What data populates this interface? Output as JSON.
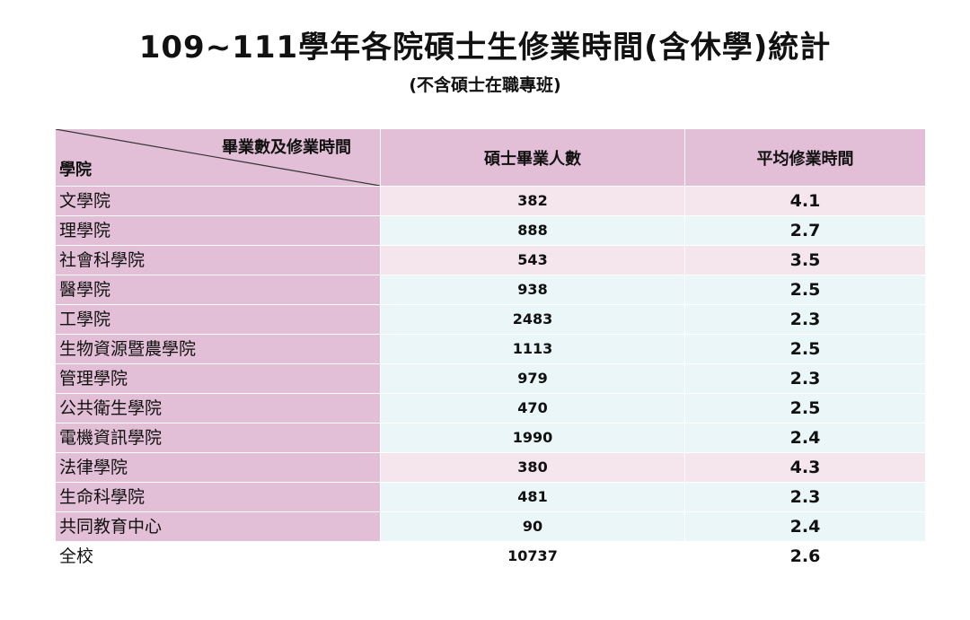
{
  "title": "109~111學年各院碩士生修業時間(含休學)統計",
  "subtitle": "(不含碩士在職專班)",
  "table": {
    "corner_top": "畢業數及修業時間",
    "corner_bottom": "學院",
    "col_graduates": "碩士畢業人數",
    "col_avg_time": "平均修業時間",
    "rows": [
      {
        "college": "文學院",
        "graduates": "382",
        "avg": "4.1"
      },
      {
        "college": "理學院",
        "graduates": "888",
        "avg": "2.7"
      },
      {
        "college": "社會科學院",
        "graduates": "543",
        "avg": "3.5"
      },
      {
        "college": "醫學院",
        "graduates": "938",
        "avg": "2.5"
      },
      {
        "college": "工學院",
        "graduates": "2483",
        "avg": "2.3"
      },
      {
        "college": "生物資源暨農學院",
        "graduates": "1113",
        "avg": "2.5"
      },
      {
        "college": "管理學院",
        "graduates": "979",
        "avg": "2.3"
      },
      {
        "college": "公共衛生學院",
        "graduates": "470",
        "avg": "2.5"
      },
      {
        "college": "電機資訊學院",
        "graduates": "1990",
        "avg": "2.4"
      },
      {
        "college": "法律學院",
        "graduates": "380",
        "avg": "4.3"
      },
      {
        "college": "生命科學院",
        "graduates": "481",
        "avg": "2.3"
      },
      {
        "college": "共同教育中心",
        "graduates": "90",
        "avg": "2.4"
      }
    ],
    "total": {
      "college": "全校",
      "graduates": "10737",
      "avg": "2.6"
    }
  },
  "colors": {
    "header_bg": "#e2bfd6",
    "row_pink": "#f5e6ee",
    "row_blue": "#eaf6f8"
  }
}
